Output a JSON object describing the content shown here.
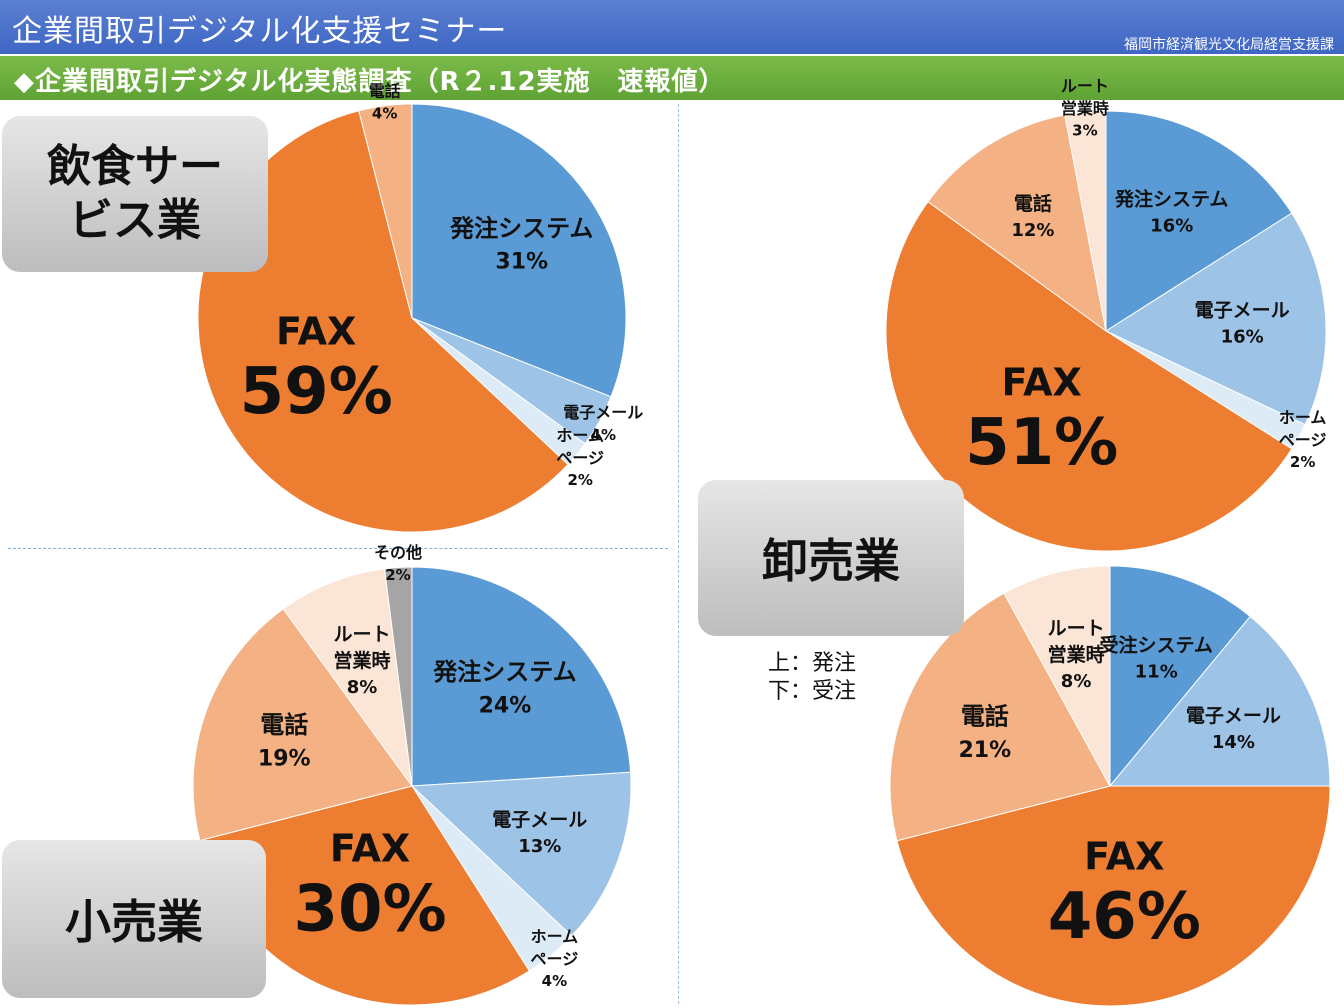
{
  "header": {
    "title": "企業間取引デジタル化支援セミナー",
    "org": "福岡市経済観光文化局経営支援課",
    "subtitle": "◆企業間取引デジタル化実態調査（R２.12実施　速報値）"
  },
  "labels": {
    "food": "飲食サービス業",
    "retail": "小売業",
    "wholesale": "卸売業"
  },
  "note": {
    "line1": "上：発注",
    "line2": "下：受注"
  },
  "colors": {
    "system": "#5b9bd5",
    "email": "#9dc3e6",
    "homepage": "#ddebf7",
    "fax": "#ed7d31",
    "phone": "#f4b183",
    "route": "#fbe5d6",
    "other": "#a5a5a5"
  },
  "chart_data": [
    {
      "id": "food",
      "type": "pie",
      "title": "飲食サービス業",
      "series": [
        {
          "name": "発注システム",
          "value": 31,
          "label": "31%",
          "color": "#5b9bd5"
        },
        {
          "name": "電子メール",
          "value": 4,
          "label": "4%",
          "color": "#9dc3e6"
        },
        {
          "name": "ホームページ",
          "value": 2,
          "label": "2%",
          "color": "#ddebf7"
        },
        {
          "name": "FAX",
          "value": 59,
          "label": "59%",
          "color": "#ed7d31"
        },
        {
          "name": "電話",
          "value": 4,
          "label": "4%",
          "color": "#f4b183"
        }
      ]
    },
    {
      "id": "retail",
      "type": "pie",
      "title": "小売業",
      "series": [
        {
          "name": "発注システム",
          "value": 24,
          "label": "24%",
          "color": "#5b9bd5"
        },
        {
          "name": "電子メール",
          "value": 13,
          "label": "13%",
          "color": "#9dc3e6"
        },
        {
          "name": "ホームページ",
          "value": 4,
          "label": "4%",
          "color": "#ddebf7"
        },
        {
          "name": "FAX",
          "value": 30,
          "label": "30%",
          "color": "#ed7d31"
        },
        {
          "name": "電話",
          "value": 19,
          "label": "19%",
          "color": "#f4b183"
        },
        {
          "name": "ルート営業時",
          "value": 8,
          "label": "8%",
          "color": "#fbe5d6"
        },
        {
          "name": "その他",
          "value": 2,
          "label": "2%",
          "color": "#a5a5a5"
        }
      ]
    },
    {
      "id": "wholesale-order",
      "type": "pie",
      "title": "卸売業（発注）",
      "series": [
        {
          "name": "発注システム",
          "value": 16,
          "label": "16%",
          "color": "#5b9bd5"
        },
        {
          "name": "電子メール",
          "value": 16,
          "label": "16%",
          "color": "#9dc3e6"
        },
        {
          "name": "ホームページ",
          "value": 2,
          "label": "2%",
          "color": "#ddebf7"
        },
        {
          "name": "FAX",
          "value": 51,
          "label": "51%",
          "color": "#ed7d31"
        },
        {
          "name": "電話",
          "value": 12,
          "label": "12%",
          "color": "#f4b183"
        },
        {
          "name": "ルート営業時",
          "value": 3,
          "label": "3%",
          "color": "#fbe5d6"
        }
      ]
    },
    {
      "id": "wholesale-receive",
      "type": "pie",
      "title": "卸売業（受注）",
      "series": [
        {
          "name": "受注システム",
          "value": 11,
          "label": "11%",
          "color": "#5b9bd5"
        },
        {
          "name": "電子メール",
          "value": 14,
          "label": "14%",
          "color": "#9dc3e6"
        },
        {
          "name": "FAX",
          "value": 46,
          "label": "46%",
          "color": "#ed7d31"
        },
        {
          "name": "電話",
          "value": 21,
          "label": "21%",
          "color": "#f4b183"
        },
        {
          "name": "ルート営業時",
          "value": 8,
          "label": "8%",
          "color": "#fbe5d6"
        }
      ]
    }
  ]
}
